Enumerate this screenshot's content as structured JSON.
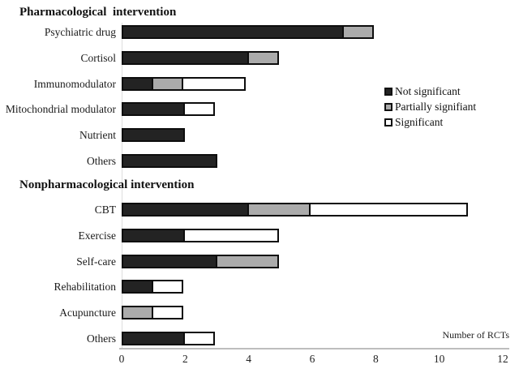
{
  "chart_data": {
    "type": "bar",
    "orientation": "horizontal",
    "stacked": true,
    "title": "",
    "xlabel": "Number of RCTs",
    "ylabel": "",
    "xlim": [
      0,
      12
    ],
    "xticks": [
      0,
      2,
      4,
      6,
      8,
      10,
      12
    ],
    "grid": false,
    "series": [
      "Not significant",
      "Partially signifiant",
      "Significant"
    ],
    "series_colors": [
      "#232323",
      "#ababab",
      "#ffffff"
    ],
    "groups": [
      {
        "title": "Pharmacological  intervention",
        "rows": [
          {
            "label": "Psychiatric drug",
            "values": [
              7,
              1,
              0
            ]
          },
          {
            "label": "Cortisol",
            "values": [
              4,
              1,
              0
            ]
          },
          {
            "label": "Immunomodulator",
            "values": [
              1,
              1,
              2
            ]
          },
          {
            "label": "Mitochondrial modulator",
            "values": [
              2,
              0,
              1
            ]
          },
          {
            "label": "Nutrient",
            "values": [
              2,
              0,
              0
            ]
          },
          {
            "label": "Others",
            "values": [
              3,
              0,
              0
            ]
          }
        ]
      },
      {
        "title": "Nonpharmacological intervention",
        "rows": [
          {
            "label": "CBT",
            "values": [
              4,
              2,
              5
            ]
          },
          {
            "label": "Exercise",
            "values": [
              2,
              0,
              3
            ]
          },
          {
            "label": "Self-care",
            "values": [
              3,
              2,
              0
            ]
          },
          {
            "label": "Rehabilitation",
            "values": [
              1,
              0,
              1
            ]
          },
          {
            "label": "Acupuncture",
            "values": [
              0,
              1,
              1
            ]
          },
          {
            "label": "Others",
            "values": [
              2,
              0,
              1
            ]
          }
        ]
      }
    ],
    "legend": {
      "position": "right",
      "items": [
        {
          "label": "Not significant",
          "color": "#232323"
        },
        {
          "label": "Partially signifiant",
          "color": "#ababab"
        },
        {
          "label": "Significant",
          "color": "#ffffff"
        }
      ]
    }
  },
  "colors": {
    "segment_border": "#0d0d0d",
    "x_axis_line": "#bdbdbd",
    "y_axis_line": "#dedede",
    "background": "#ffffff",
    "text": "#1a1a1a"
  }
}
